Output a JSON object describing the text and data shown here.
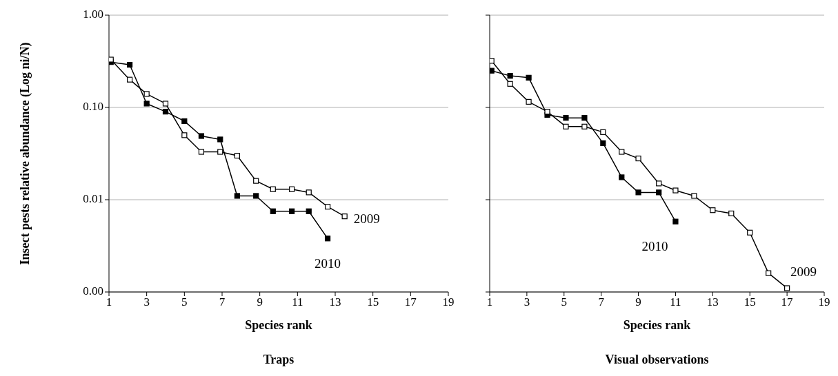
{
  "chart_data": [
    {
      "type": "line",
      "title": "Traps",
      "xlabel": "Species rank",
      "ylabel": "Insect pests relative abundance (Log ni/N)",
      "log": true,
      "grid": "y",
      "marker": "square",
      "xlim": [
        1,
        19
      ],
      "xticks": [
        1,
        3,
        5,
        7,
        9,
        11,
        13,
        15,
        17,
        19
      ],
      "ylim": [
        0.001,
        1
      ],
      "yticks": [
        {
          "value": 0.001,
          "label": "0.00"
        },
        {
          "value": 0.01,
          "label": "0.01"
        },
        {
          "value": 0.1,
          "label": "0.10"
        },
        {
          "value": 1,
          "label": "1.00"
        }
      ],
      "series": [
        {
          "name": "2009",
          "color": "#000000",
          "x": [
            1.1,
            2.1,
            3.0,
            4.0,
            5.0,
            5.9,
            6.9,
            7.8,
            8.8,
            9.7,
            10.7,
            11.6,
            12.6,
            13.5
          ],
          "values": [
            0.33,
            0.2,
            0.14,
            0.11,
            0.05,
            0.033,
            0.033,
            0.03,
            0.016,
            0.013,
            0.013,
            0.012,
            0.0084,
            0.0066
          ]
        },
        {
          "name": "2010",
          "color": "#000000",
          "x": [
            1.1,
            2.1,
            3.0,
            4.0,
            5.0,
            5.9,
            6.9,
            7.8,
            8.8,
            9.7,
            10.7,
            11.6,
            12.6
          ],
          "values": [
            0.31,
            0.29,
            0.11,
            0.09,
            0.071,
            0.049,
            0.045,
            0.011,
            0.011,
            0.0075,
            0.0075,
            0.0075,
            0.0038
          ]
        }
      ]
    },
    {
      "type": "line",
      "title": "Visual observations",
      "xlabel": "Species rank",
      "log": true,
      "grid": "y",
      "marker": "square",
      "tick_labels": "x",
      "xlim": [
        1,
        19
      ],
      "xticks": [
        1,
        3,
        5,
        7,
        9,
        11,
        13,
        15,
        17,
        19
      ],
      "ylim": [
        0.001,
        1
      ],
      "yticks": [
        {
          "value": 0.001,
          "label": null
        },
        {
          "value": 0.01,
          "label": null
        },
        {
          "value": 0.1,
          "label": null
        },
        {
          "value": 1,
          "label": null
        }
      ],
      "series": [
        {
          "name": "2009",
          "color": "#000000",
          "x": [
            1.1,
            2.1,
            3.1,
            4.1,
            5.1,
            6.1,
            7.1,
            8.1,
            9.0,
            10.1,
            11.0,
            12.0,
            13.0,
            14.0,
            15.0,
            16.0,
            17.0
          ],
          "values": [
            0.32,
            0.18,
            0.115,
            0.09,
            0.062,
            0.062,
            0.054,
            0.033,
            0.028,
            0.015,
            0.0126,
            0.011,
            0.0077,
            0.0071,
            0.0044,
            0.0016,
            0.0011
          ]
        },
        {
          "name": "2010",
          "color": "#000000",
          "x": [
            1.1,
            2.1,
            3.1,
            4.1,
            5.1,
            6.1,
            7.1,
            8.1,
            9.0,
            10.1,
            11.0
          ],
          "values": [
            0.25,
            0.22,
            0.21,
            0.083,
            0.077,
            0.077,
            0.041,
            0.0175,
            0.012,
            0.012,
            0.0058
          ]
        }
      ]
    }
  ]
}
